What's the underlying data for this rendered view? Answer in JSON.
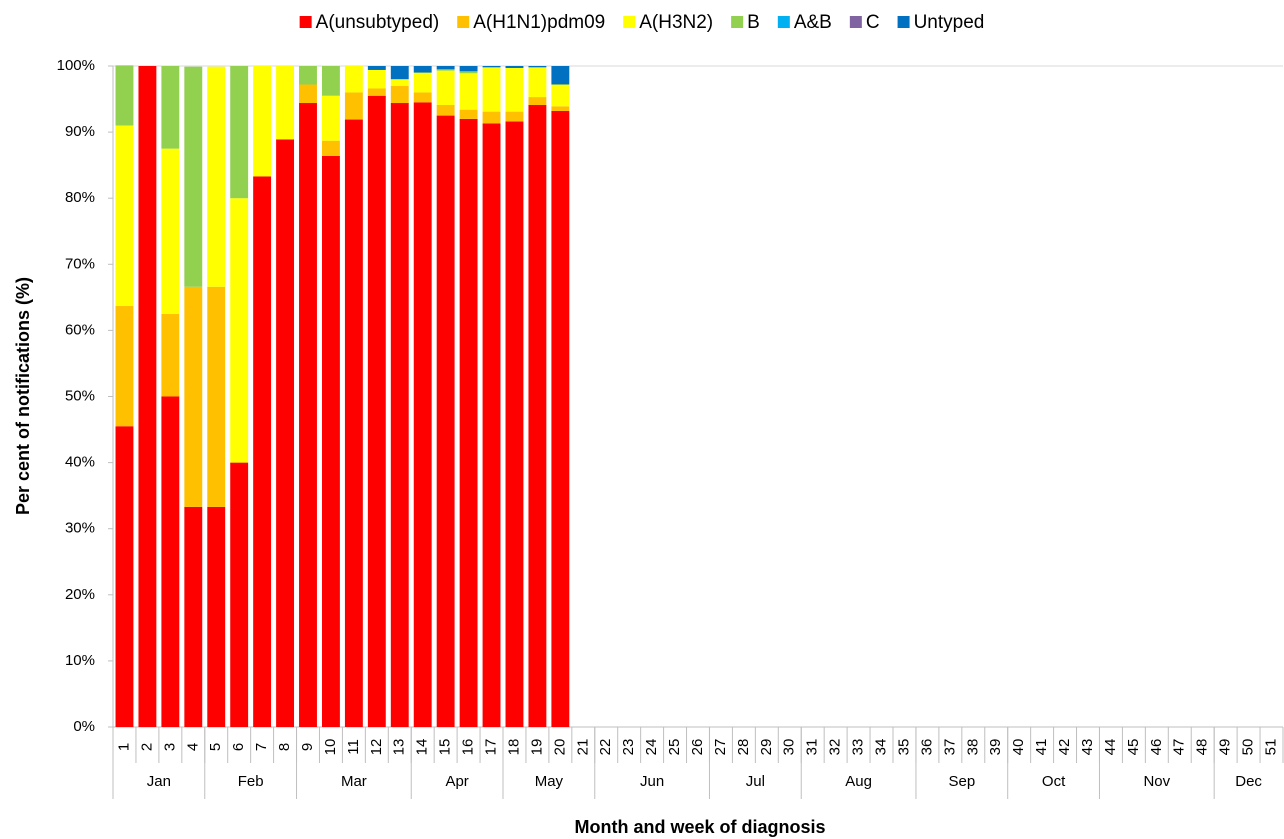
{
  "chart_data": {
    "type": "bar",
    "stacked": true,
    "x_label": "Month and week of diagnosis",
    "y_label": "Per cent of notifications (%)",
    "categories": [
      "1",
      "2",
      "3",
      "4",
      "5",
      "6",
      "7",
      "8",
      "9",
      "10",
      "11",
      "12",
      "13",
      "14",
      "15",
      "16",
      "17",
      "18",
      "19",
      "20",
      "21",
      "22",
      "23",
      "24",
      "25",
      "26",
      "27",
      "28",
      "29",
      "30",
      "31",
      "32",
      "33",
      "34",
      "35",
      "36",
      "37",
      "38",
      "39",
      "40",
      "41",
      "42",
      "43",
      "44",
      "45",
      "46",
      "47",
      "48",
      "49",
      "50",
      "51"
    ],
    "month_groups": [
      {
        "label": "Jan",
        "count": 4
      },
      {
        "label": "Feb",
        "count": 4
      },
      {
        "label": "Mar",
        "count": 5
      },
      {
        "label": "Apr",
        "count": 4
      },
      {
        "label": "May",
        "count": 4
      },
      {
        "label": "Jun",
        "count": 5
      },
      {
        "label": "Jul",
        "count": 4
      },
      {
        "label": "Aug",
        "count": 5
      },
      {
        "label": "Sep",
        "count": 4
      },
      {
        "label": "Oct",
        "count": 4
      },
      {
        "label": "Nov",
        "count": 5
      },
      {
        "label": "Dec",
        "count": 3
      }
    ],
    "series": [
      {
        "name": "A(unsubtyped)",
        "color": "#ff0000",
        "values": [
          45.5,
          100,
          50,
          33.3,
          33.3,
          40,
          83.3,
          88.9,
          94.4,
          86.4,
          91.9,
          95.5,
          94.4,
          94.5,
          92.5,
          92.0,
          91.3,
          91.6,
          94.1,
          93.2,
          null,
          null,
          null,
          null,
          null,
          null,
          null,
          null,
          null,
          null,
          null,
          null,
          null,
          null,
          null,
          null,
          null,
          null,
          null,
          null,
          null,
          null,
          null,
          null,
          null,
          null,
          null,
          null,
          null,
          null,
          null
        ]
      },
      {
        "name": "A(H1N1)pdm09",
        "color": "#ffc000",
        "values": [
          18.2,
          0,
          12.5,
          33.3,
          33.3,
          0,
          0,
          0,
          2.8,
          2.3,
          4.1,
          1.1,
          2.6,
          1.5,
          1.6,
          1.4,
          1.8,
          1.5,
          1.2,
          0.7,
          null,
          null,
          null,
          null,
          null,
          null,
          null,
          null,
          null,
          null,
          null,
          null,
          null,
          null,
          null,
          null,
          null,
          null,
          null,
          null,
          null,
          null,
          null,
          null,
          null,
          null,
          null,
          null,
          null,
          null,
          null
        ]
      },
      {
        "name": "A(H3N2)",
        "color": "#ffff00",
        "values": [
          27.3,
          0,
          25,
          0,
          33.3,
          40,
          16.7,
          11.1,
          0,
          6.8,
          4.0,
          2.8,
          1.0,
          3.0,
          5.2,
          5.5,
          6.7,
          6.6,
          4.5,
          3.3,
          null,
          null,
          null,
          null,
          null,
          null,
          null,
          null,
          null,
          null,
          null,
          null,
          null,
          null,
          null,
          null,
          null,
          null,
          null,
          null,
          null,
          null,
          null,
          null,
          null,
          null,
          null,
          null,
          null,
          null,
          null
        ]
      },
      {
        "name": "B",
        "color": "#92d050",
        "values": [
          9.1,
          0,
          12.5,
          33.3,
          0,
          20,
          0,
          0,
          2.8,
          4.5,
          0,
          0,
          0,
          0,
          0.2,
          0.3,
          0,
          0,
          0,
          0,
          null,
          null,
          null,
          null,
          null,
          null,
          null,
          null,
          null,
          null,
          null,
          null,
          null,
          null,
          null,
          null,
          null,
          null,
          null,
          null,
          null,
          null,
          null,
          null,
          null,
          null,
          null,
          null,
          null,
          null,
          null
        ]
      },
      {
        "name": "A&B",
        "color": "#00b0f0",
        "values": [
          0,
          0,
          0,
          0,
          0,
          0,
          0,
          0,
          0,
          0,
          0,
          0,
          0,
          0,
          0,
          0,
          0,
          0,
          0,
          0,
          null,
          null,
          null,
          null,
          null,
          null,
          null,
          null,
          null,
          null,
          null,
          null,
          null,
          null,
          null,
          null,
          null,
          null,
          null,
          null,
          null,
          null,
          null,
          null,
          null,
          null,
          null,
          null,
          null,
          null,
          null
        ]
      },
      {
        "name": "C",
        "color": "#8064a2",
        "values": [
          0,
          0,
          0,
          0,
          0,
          0,
          0,
          0,
          0,
          0,
          0,
          0,
          0,
          0,
          0,
          0,
          0,
          0,
          0,
          0,
          null,
          null,
          null,
          null,
          null,
          null,
          null,
          null,
          null,
          null,
          null,
          null,
          null,
          null,
          null,
          null,
          null,
          null,
          null,
          null,
          null,
          null,
          null,
          null,
          null,
          null,
          null,
          null,
          null,
          null,
          null
        ]
      },
      {
        "name": "Untyped",
        "color": "#0070c0",
        "values": [
          0,
          0,
          0,
          0,
          0,
          0,
          0,
          0,
          0,
          0,
          0,
          0.6,
          2.0,
          1.0,
          0.5,
          0.8,
          0.2,
          0.3,
          0.2,
          2.8,
          null,
          null,
          null,
          null,
          null,
          null,
          null,
          null,
          null,
          null,
          null,
          null,
          null,
          null,
          null,
          null,
          null,
          null,
          null,
          null,
          null,
          null,
          null,
          null,
          null,
          null,
          null,
          null,
          null,
          null,
          null
        ]
      }
    ],
    "ylim": [
      0,
      100
    ],
    "yticks": [
      {
        "value": 0,
        "label": "0%"
      },
      {
        "value": 10,
        "label": "10%"
      },
      {
        "value": 20,
        "label": "20%"
      },
      {
        "value": 30,
        "label": "30%"
      },
      {
        "value": 40,
        "label": "40%"
      },
      {
        "value": 50,
        "label": "50%"
      },
      {
        "value": 60,
        "label": "60%"
      },
      {
        "value": 70,
        "label": "70%"
      },
      {
        "value": 80,
        "label": "80%"
      },
      {
        "value": 90,
        "label": "90%"
      },
      {
        "value": 100,
        "label": "100%"
      }
    ],
    "grid": false,
    "legend": "top"
  }
}
